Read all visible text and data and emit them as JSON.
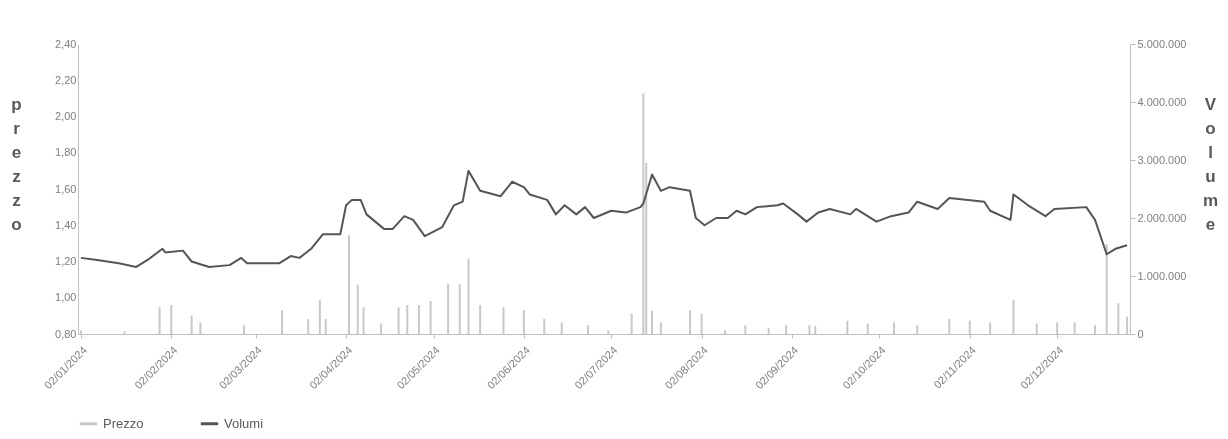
{
  "chart_data": {
    "type": "bar",
    "ylabel": "prezzo",
    "y2label": "Volume",
    "legend": "bottom",
    "grid": false,
    "xlim": [
      "2024-01-01",
      "2024-12-27"
    ],
    "xticks": [
      {
        "value": "2024-01-02",
        "label": "02/01/2024"
      },
      {
        "value": "2024-02-02",
        "label": "02/02/2024"
      },
      {
        "value": "2024-03-02",
        "label": "02/03/2024"
      },
      {
        "value": "2024-04-02",
        "label": "02/04/2024"
      },
      {
        "value": "2024-05-02",
        "label": "02/05/2024"
      },
      {
        "value": "2024-06-02",
        "label": "02/06/2024"
      },
      {
        "value": "2024-07-02",
        "label": "02/07/2024"
      },
      {
        "value": "2024-08-02",
        "label": "02/08/2024"
      },
      {
        "value": "2024-09-02",
        "label": "02/09/2024"
      },
      {
        "value": "2024-10-02",
        "label": "02/10/2024"
      },
      {
        "value": "2024-11-02",
        "label": "02/11/2024"
      },
      {
        "value": "2024-12-02",
        "label": "02/12/2024"
      }
    ],
    "ylim": [
      0.8,
      2.4
    ],
    "yticks": [
      {
        "value": 0.8,
        "label": "0,80"
      },
      {
        "value": 1.0,
        "label": "1,00"
      },
      {
        "value": 1.2,
        "label": "1,20"
      },
      {
        "value": 1.4,
        "label": "1,40"
      },
      {
        "value": 1.6,
        "label": "1,60"
      },
      {
        "value": 1.8,
        "label": "1,80"
      },
      {
        "value": 2.0,
        "label": "2,00"
      },
      {
        "value": 2.2,
        "label": "2,20"
      },
      {
        "value": 2.4,
        "label": "2,40"
      }
    ],
    "y2lim": [
      0,
      5000000
    ],
    "y2ticks": [
      {
        "value": 0,
        "label": "0"
      },
      {
        "value": 1000000,
        "label": "1.000.000"
      },
      {
        "value": 2000000,
        "label": "2.000.000"
      },
      {
        "value": 3000000,
        "label": "3.000.000"
      },
      {
        "value": 4000000,
        "label": "4.000.000"
      },
      {
        "value": 5000000,
        "label": "5.000.000"
      }
    ],
    "series": [
      {
        "name": "Prezzo",
        "axis": "y2",
        "color": "#c8c8c8",
        "x": [
          "2024-01-02",
          "2024-01-17",
          "2024-01-29",
          "2024-02-02",
          "2024-02-09",
          "2024-02-12",
          "2024-02-27",
          "2024-03-11",
          "2024-03-20",
          "2024-03-24",
          "2024-03-26",
          "2024-04-03",
          "2024-04-06",
          "2024-04-08",
          "2024-04-14",
          "2024-04-20",
          "2024-04-23",
          "2024-04-27",
          "2024-05-01",
          "2024-05-07",
          "2024-05-11",
          "2024-05-14",
          "2024-05-18",
          "2024-05-26",
          "2024-06-02",
          "2024-06-09",
          "2024-06-15",
          "2024-06-24",
          "2024-07-01",
          "2024-07-09",
          "2024-07-13",
          "2024-07-14",
          "2024-07-16",
          "2024-07-19",
          "2024-07-29",
          "2024-08-02",
          "2024-08-10",
          "2024-08-17",
          "2024-08-25",
          "2024-08-31",
          "2024-09-08",
          "2024-09-10",
          "2024-09-21",
          "2024-09-28",
          "2024-10-07",
          "2024-10-15",
          "2024-10-26",
          "2024-11-02",
          "2024-11-09",
          "2024-11-17",
          "2024-11-25",
          "2024-12-02",
          "2024-12-08",
          "2024-12-15",
          "2024-12-19",
          "2024-12-23",
          "2024-12-26"
        ],
        "values": [
          60000,
          50000,
          460000,
          500000,
          320000,
          200000,
          150000,
          410000,
          260000,
          590000,
          260000,
          1700000,
          850000,
          460000,
          180000,
          460000,
          500000,
          500000,
          570000,
          860000,
          860000,
          1300000,
          500000,
          460000,
          410000,
          260000,
          200000,
          150000,
          60000,
          350000,
          4150000,
          2950000,
          400000,
          200000,
          410000,
          350000,
          60000,
          150000,
          100000,
          150000,
          150000,
          140000,
          230000,
          180000,
          200000,
          150000,
          260000,
          230000,
          200000,
          590000,
          180000,
          200000,
          200000,
          150000,
          1550000,
          530000,
          300000
        ]
      },
      {
        "name": "Volumi",
        "type": "line",
        "color": "#555555",
        "x": [
          "2024-01-02",
          "2024-01-07",
          "2024-01-15",
          "2024-01-21",
          "2024-01-25",
          "2024-01-30",
          "2024-01-31",
          "2024-02-06",
          "2024-02-09",
          "2024-02-15",
          "2024-02-22",
          "2024-02-26",
          "2024-02-28",
          "2024-03-10",
          "2024-03-14",
          "2024-03-17",
          "2024-03-21",
          "2024-03-25",
          "2024-03-31",
          "2024-04-02",
          "2024-04-04",
          "2024-04-07",
          "2024-04-09",
          "2024-04-15",
          "2024-04-18",
          "2024-04-22",
          "2024-04-25",
          "2024-04-29",
          "2024-05-05",
          "2024-05-09",
          "2024-05-12",
          "2024-05-14",
          "2024-05-18",
          "2024-05-25",
          "2024-05-29",
          "2024-06-02",
          "2024-06-04",
          "2024-06-10",
          "2024-06-13",
          "2024-06-16",
          "2024-06-20",
          "2024-06-23",
          "2024-06-26",
          "2024-07-02",
          "2024-07-07",
          "2024-07-12",
          "2024-07-13",
          "2024-07-16",
          "2024-07-19",
          "2024-07-22",
          "2024-07-29",
          "2024-07-31",
          "2024-08-03",
          "2024-08-07",
          "2024-08-11",
          "2024-08-14",
          "2024-08-17",
          "2024-08-21",
          "2024-08-28",
          "2024-08-30",
          "2024-09-04",
          "2024-09-07",
          "2024-09-11",
          "2024-09-15",
          "2024-09-22",
          "2024-09-24",
          "2024-10-01",
          "2024-10-06",
          "2024-10-12",
          "2024-10-15",
          "2024-10-22",
          "2024-10-26",
          "2024-11-07",
          "2024-11-09",
          "2024-11-16",
          "2024-11-17",
          "2024-11-22",
          "2024-11-28",
          "2024-12-01",
          "2024-12-12",
          "2024-12-15",
          "2024-12-19",
          "2024-12-22",
          "2024-12-26"
        ],
        "values": [
          1.22,
          1.21,
          1.19,
          1.17,
          1.21,
          1.27,
          1.25,
          1.26,
          1.2,
          1.17,
          1.18,
          1.22,
          1.19,
          1.19,
          1.23,
          1.22,
          1.27,
          1.35,
          1.35,
          1.51,
          1.54,
          1.54,
          1.46,
          1.38,
          1.38,
          1.45,
          1.43,
          1.34,
          1.39,
          1.51,
          1.53,
          1.7,
          1.59,
          1.56,
          1.64,
          1.61,
          1.57,
          1.54,
          1.46,
          1.51,
          1.46,
          1.5,
          1.44,
          1.48,
          1.47,
          1.5,
          1.52,
          1.68,
          1.59,
          1.61,
          1.59,
          1.44,
          1.4,
          1.44,
          1.44,
          1.48,
          1.46,
          1.5,
          1.51,
          1.52,
          1.46,
          1.42,
          1.47,
          1.49,
          1.46,
          1.49,
          1.42,
          1.45,
          1.47,
          1.53,
          1.49,
          1.55,
          1.53,
          1.48,
          1.43,
          1.57,
          1.51,
          1.45,
          1.49,
          1.5,
          1.43,
          1.24,
          1.27,
          1.29
        ]
      }
    ]
  }
}
